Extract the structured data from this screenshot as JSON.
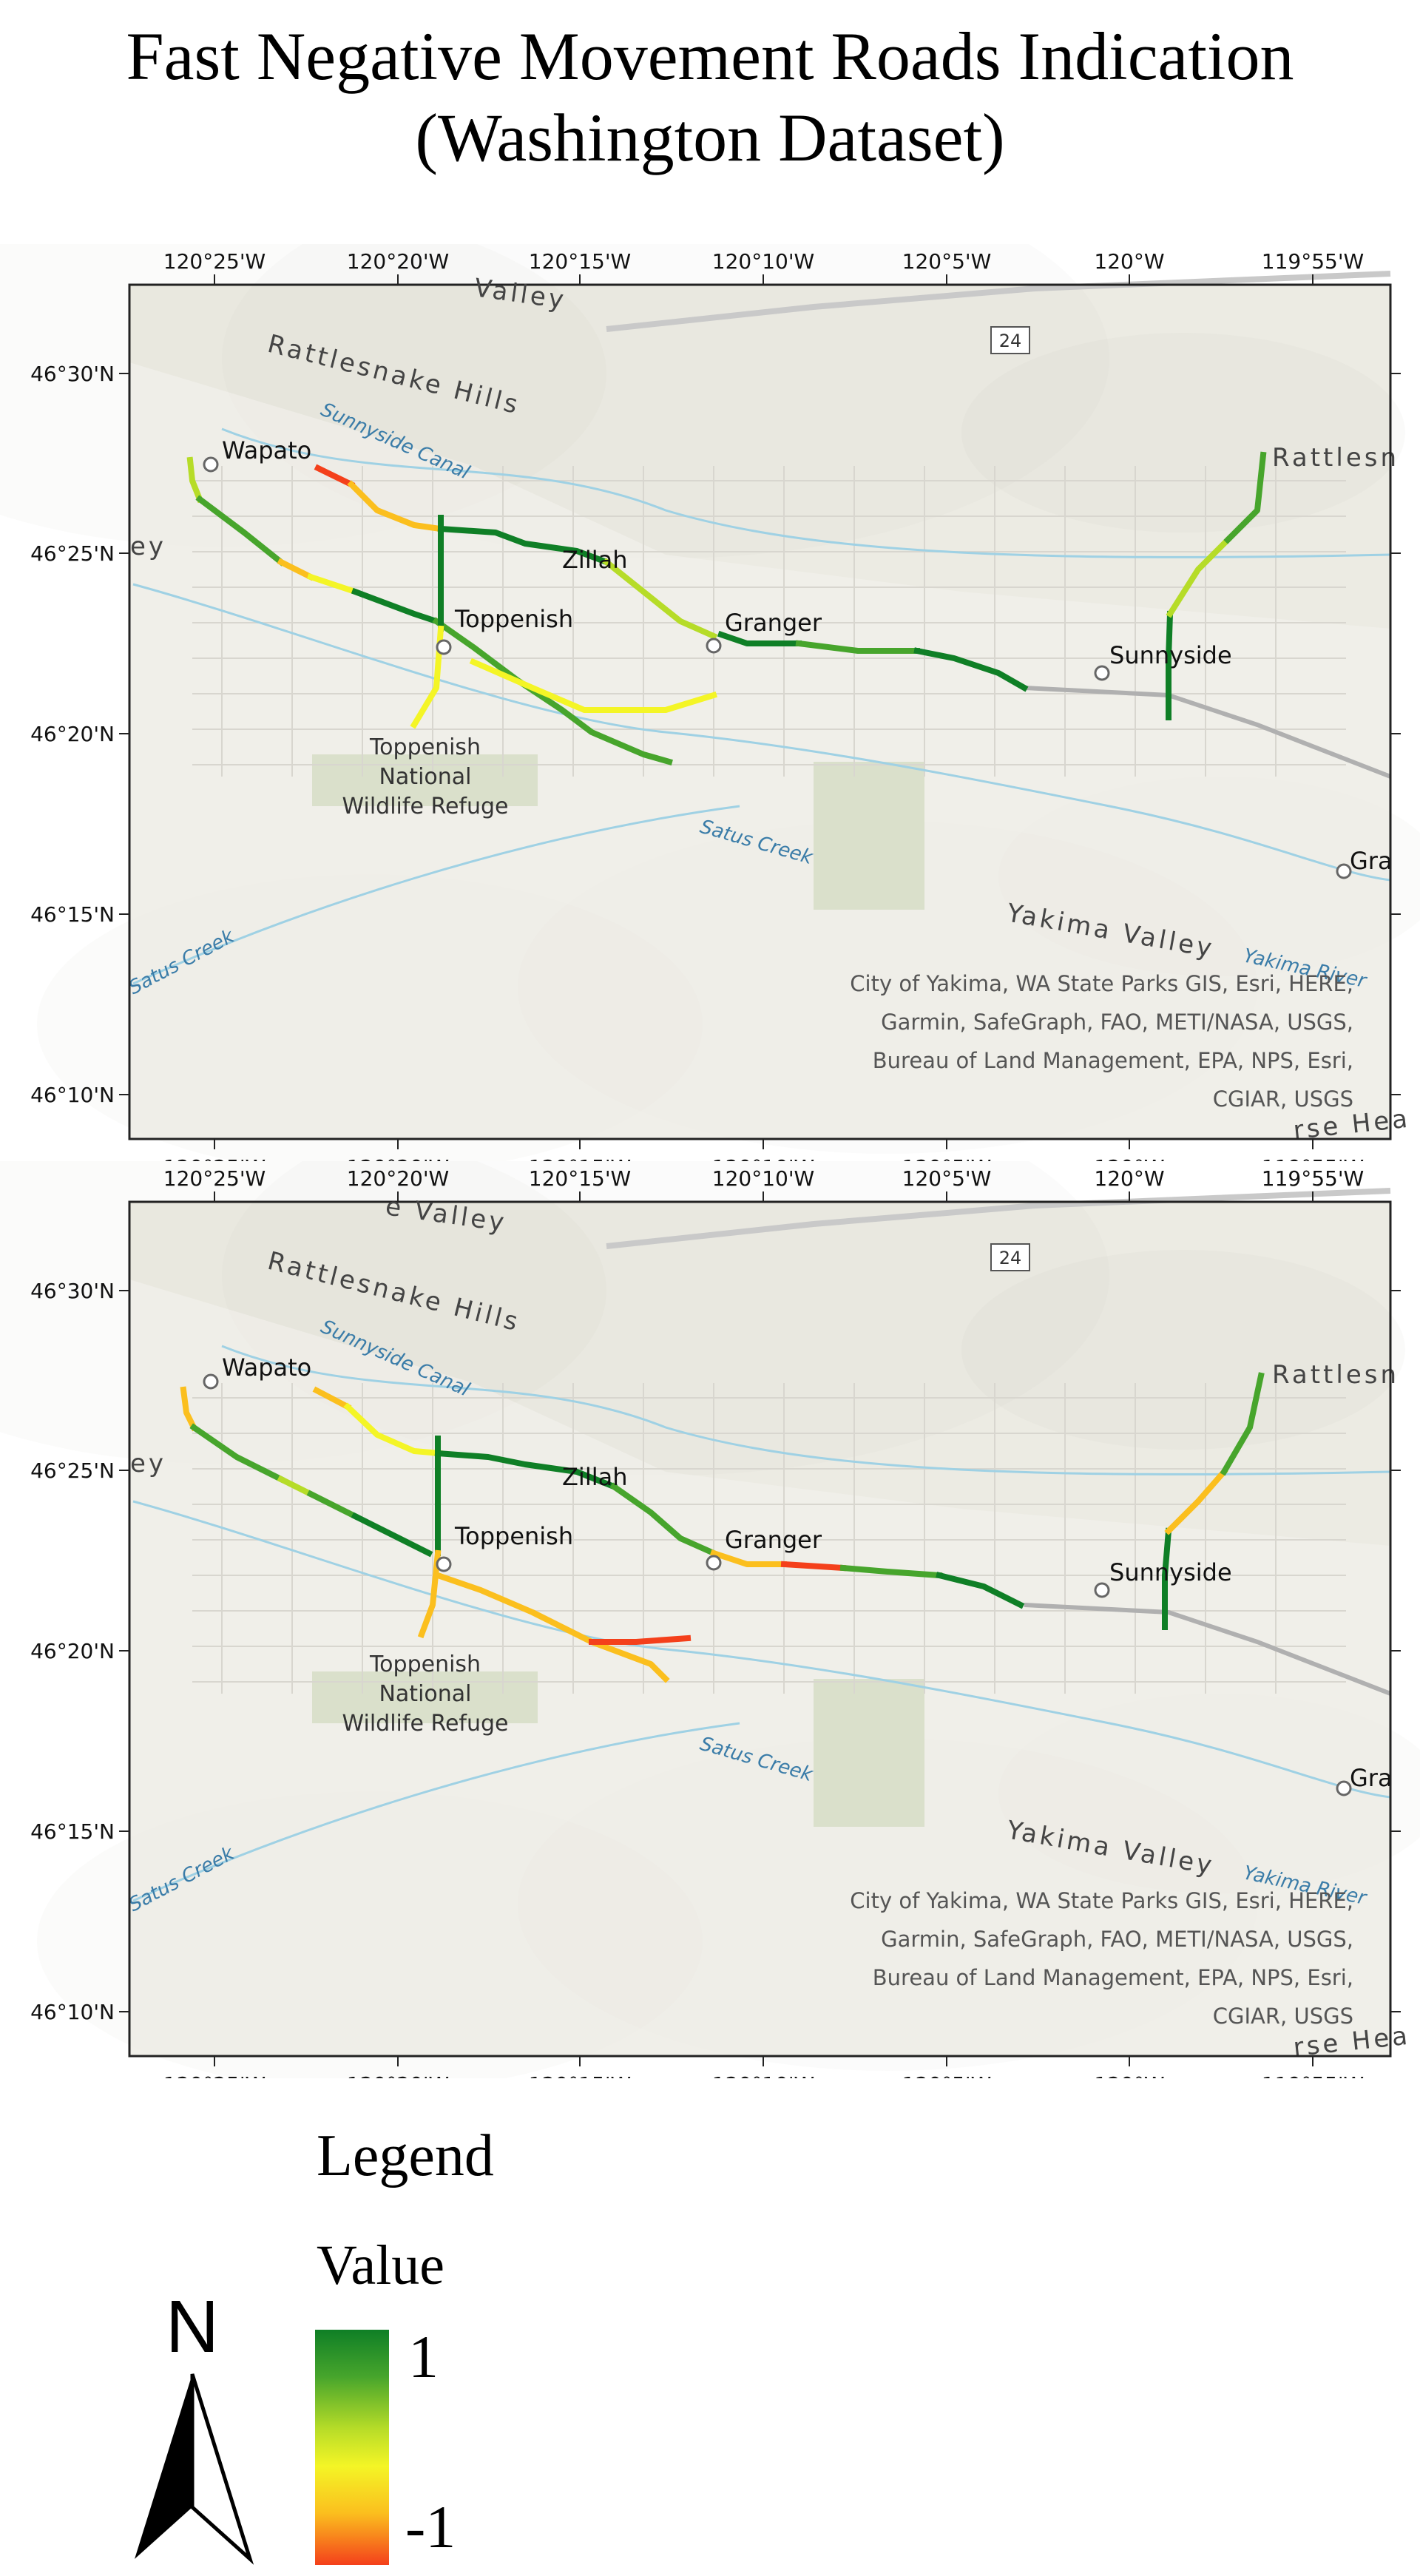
{
  "title": {
    "line1": "Fast Negative Movement Roads Indication",
    "line2": "(Washington Dataset)"
  },
  "map": {
    "lon_labels": [
      "120°25'W",
      "120°20'W",
      "120°15'W",
      "120°10'W",
      "120°5'W",
      "120°W",
      "119°55'W"
    ],
    "lat_labels": [
      "46°30'N",
      "46°25'N",
      "46°20'N",
      "46°15'N",
      "46°10'N"
    ],
    "places": [
      "Wapato",
      "Zillah",
      "Toppenish",
      "Granger",
      "Sunnyside",
      "Gra"
    ],
    "refuge": [
      "Toppenish",
      "National",
      "Wildlife Refuge"
    ],
    "terrain_labels": {
      "rattlesnake_hills": "Rattlesnake Hills",
      "rattlesn": "Rattlesn",
      "yakima_valley": "Yakima Valley",
      "valley_top": "Valley",
      "e_valley": "e Valley",
      "horse_heaven": "rse Hea",
      "ey": "ey"
    },
    "water_labels": {
      "canal": "Sunnyside Canal",
      "satus": "Satus Creek",
      "satus_sw": "Satus Creek",
      "yakima_river": "Yakima River"
    },
    "highway": "24",
    "credits": [
      "City of Yakima, WA State Parks GIS, Esri, HERE,",
      "Garmin, SafeGraph, FAO, METI/NASA, USGS,",
      "Bureau of Land Management, EPA, NPS, Esri,",
      "CGIAR, USGS"
    ],
    "colors": {
      "v_pos1": "#0f7f26",
      "v_pos05": "#47a52c",
      "v_0": "#b6dc28",
      "v_neg02": "#f4f526",
      "v_neg06": "#fbbf1e",
      "v_neg1": "#f4401b"
    }
  },
  "legend": {
    "title": "Legend",
    "subtitle": "Value",
    "max_label": "1",
    "min_label": "-1"
  },
  "north": "N"
}
